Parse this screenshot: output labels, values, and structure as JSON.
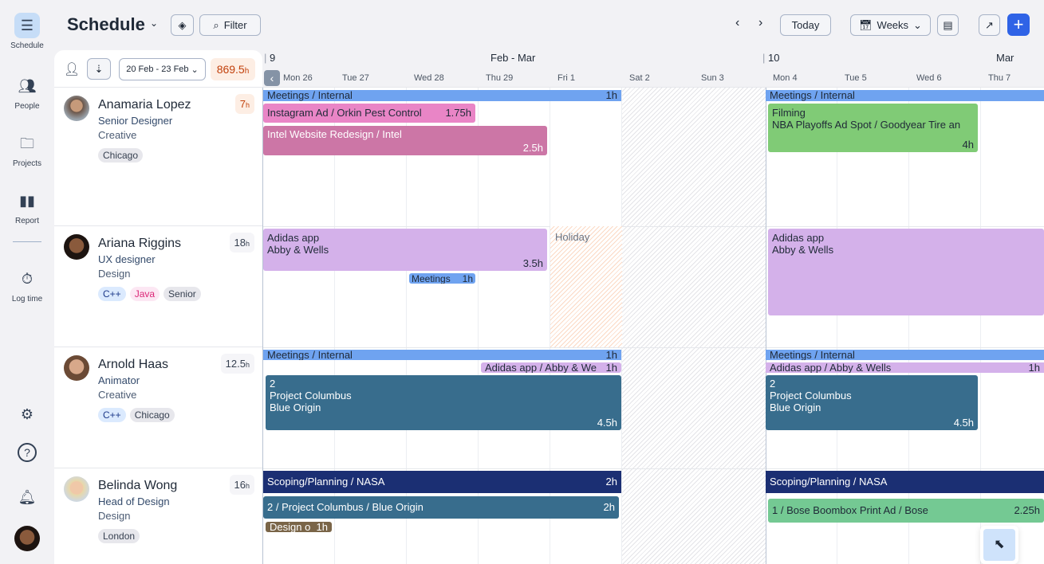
{
  "nav": {
    "items": [
      {
        "label": "Schedule",
        "icon": "schedule-icon"
      },
      {
        "label": "People",
        "icon": "people-icon"
      },
      {
        "label": "Projects",
        "icon": "folder-icon"
      },
      {
        "label": "Report",
        "icon": "bar-chart-icon"
      },
      {
        "label": "Log time",
        "icon": "stopwatch-icon"
      }
    ]
  },
  "header": {
    "title": "Schedule",
    "filter": "Filter",
    "today": "Today",
    "view": "Weeks"
  },
  "toolbar": {
    "date_range": "20 Feb - 23 Feb",
    "total_hours": "869.5",
    "hours_unit": "h"
  },
  "timeline": {
    "week1": "9",
    "month1": "Feb - Mar",
    "week2": "10",
    "month2": "Mar",
    "days": [
      "Mon 26",
      "Tue 27",
      "Wed 28",
      "Thu 29",
      "Fri 1",
      "Sat 2",
      "Sun 3",
      "Mon 4",
      "Tue 5",
      "Wed 6",
      "Thu 7"
    ]
  },
  "people": [
    {
      "name": "Anamaria Lopez",
      "role": "Senior Designer",
      "dept": "Creative",
      "hours": "7",
      "tags": [
        "Chicago"
      ]
    },
    {
      "name": "Ariana Riggins",
      "role": "UX designer",
      "dept": "Design",
      "hours": "18",
      "tags": [
        "C++",
        "Java",
        "Senior"
      ]
    },
    {
      "name": "Arnold Haas",
      "role": "Animator",
      "dept": "Creative",
      "hours": "12.5",
      "tags": [
        "C++",
        "Chicago"
      ]
    },
    {
      "name": "Belinda Wong",
      "role": "Head of Design",
      "dept": "Design",
      "hours": "16",
      "tags": [
        "London"
      ]
    }
  ],
  "events": {
    "r1a": {
      "label": "Meetings / Internal",
      "hours": "1h"
    },
    "r1b": {
      "label": "Instagram Ad / Orkin Pest Control",
      "hours": "1.75h"
    },
    "r1c": {
      "label": "Intel Website Redesign / Intel",
      "hours": "2.5h"
    },
    "r1d": {
      "label": "Meetings / Internal"
    },
    "r1e": {
      "line1": "Filming",
      "line2": "NBA Playoffs Ad Spot / Goodyear Tire an",
      "hours": "4h"
    },
    "r2a": {
      "line1": "Adidas app",
      "line2": "Abby & Wells",
      "hours": "3.5h"
    },
    "r2b": {
      "label": "Meetings",
      "hours": "1h"
    },
    "r2c": {
      "label": "Holiday"
    },
    "r2d": {
      "line1": "Adidas app",
      "line2": "Abby & Wells"
    },
    "r3a": {
      "label": "Meetings / Internal",
      "hours": "1h"
    },
    "r3b": {
      "label": "Adidas app / Abby & We",
      "hours": "1h"
    },
    "r3c": {
      "line1": "2",
      "line2": "Project Columbus",
      "line3": "Blue Origin",
      "hours": "4.5h"
    },
    "r3d": {
      "label": "Meetings / Internal"
    },
    "r3e": {
      "label": "Adidas app / Abby & Wells",
      "hours": "1h"
    },
    "r3f": {
      "line1": "2",
      "line2": "Project Columbus",
      "line3": "Blue Origin",
      "hours": "4.5h"
    },
    "r4a": {
      "label": "Scoping/Planning / NASA",
      "hours": "2h"
    },
    "r4b": {
      "label": "2 / Project Columbus / Blue Origin",
      "hours": "2h"
    },
    "r4c": {
      "label": "Design o",
      "hours": "1h"
    },
    "r4d": {
      "label": "Scoping/Planning / NASA"
    },
    "r4e": {
      "label": "1 / Bose Boombox Print Ad / Bose",
      "hours": "2.25h"
    }
  },
  "colors": {
    "accent": "#2f63e6",
    "meetings": "#6fa3f0",
    "instagram": "#e985c6",
    "intel": "#cc76a6",
    "filming": "#80cb76",
    "adidas": "#d4b1ea",
    "columbus": "#386d8d",
    "nasa": "#1b2f73",
    "bose": "#74c993",
    "design": "#7a6548"
  }
}
